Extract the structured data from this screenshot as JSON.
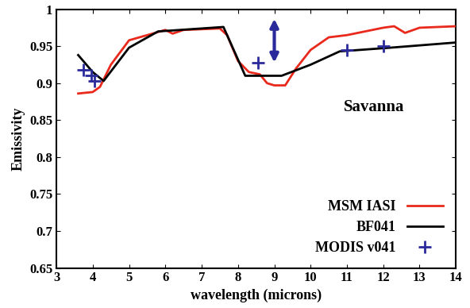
{
  "chart_data": {
    "type": "line",
    "x_label": "wavelength (microns)",
    "y_label": "Emissivity",
    "annotations": [
      "Savanna"
    ],
    "xlim": [
      3,
      14
    ],
    "ylim": [
      0.65,
      1
    ],
    "xticks": [
      3,
      4,
      5,
      6,
      7,
      8,
      9,
      10,
      11,
      12,
      13,
      14
    ],
    "yticks": [
      0.65,
      0.7,
      0.75,
      0.8,
      0.85,
      0.9,
      0.95,
      1
    ],
    "legend": "lower right",
    "grid": false,
    "series": [
      {
        "name": "MSM IASI",
        "type": "line",
        "color": "#e8291c",
        "line_style": "solid",
        "x": [
          3.6,
          3.8,
          4.0,
          4.2,
          4.5,
          5.0,
          5.5,
          6.0,
          6.2,
          6.5,
          7.0,
          7.5,
          7.7,
          8.0,
          8.3,
          8.6,
          8.8,
          9.0,
          9.3,
          9.6,
          10.0,
          10.5,
          11.0,
          11.5,
          12.0,
          12.3,
          12.6,
          13.0,
          13.5,
          14.0
        ],
        "values": [
          0.886,
          0.887,
          0.888,
          0.895,
          0.925,
          0.958,
          0.965,
          0.972,
          0.967,
          0.972,
          0.973,
          0.974,
          0.965,
          0.93,
          0.915,
          0.912,
          0.9,
          0.897,
          0.897,
          0.92,
          0.945,
          0.962,
          0.965,
          0.97,
          0.975,
          0.977,
          0.968,
          0.975,
          0.976,
          0.977
        ]
      },
      {
        "name": "BF041",
        "type": "line",
        "color": "#000000",
        "line_style": "solid",
        "x": [
          3.6,
          4.0,
          4.3,
          5.0,
          5.8,
          7.6,
          8.2,
          9.2,
          10.0,
          10.8,
          12.2,
          14.0
        ],
        "values": [
          0.938,
          0.915,
          0.903,
          0.948,
          0.97,
          0.976,
          0.91,
          0.91,
          0.925,
          0.943,
          0.948,
          0.955
        ]
      },
      {
        "name": "MODIS v041",
        "type": "scatter",
        "color": "#2a2a9a",
        "marker": "plus",
        "x": [
          3.75,
          3.96,
          4.05,
          8.55,
          11.0,
          12.0
        ],
        "values": [
          0.918,
          0.91,
          0.903,
          0.928,
          0.945,
          0.95
        ]
      }
    ],
    "error_bar": {
      "x": 9.0,
      "low": 0.925,
      "high": 0.99,
      "color": "#2a2a9a"
    }
  }
}
